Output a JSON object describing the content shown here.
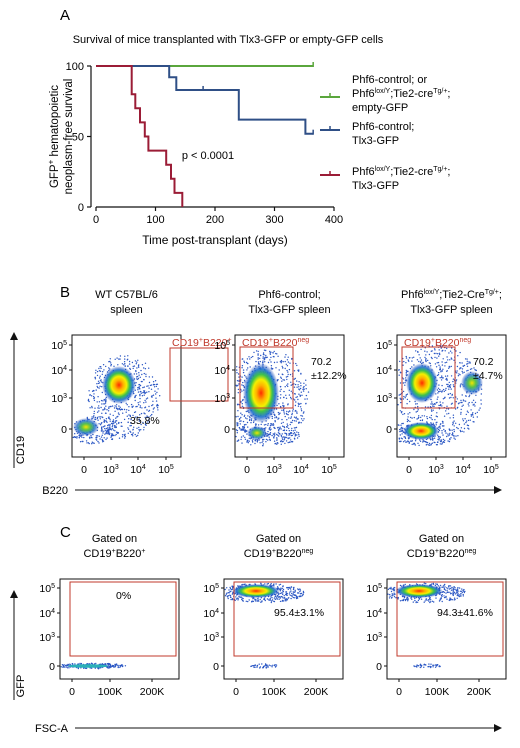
{
  "colors": {
    "green": "#5aa63c",
    "blue": "#2f4f86",
    "red": "#9b1c36",
    "gate": "#c0392b",
    "axis": "#111111"
  },
  "panel_letters": [
    "A",
    "B",
    "C"
  ],
  "chart_data": [
    {
      "type": "line",
      "subtype": "kaplan-meier",
      "title": "Survival of mice transplanted with Tlx3-GFP or empty-GFP cells",
      "xlabel": "Time post-transplant (days)",
      "ylabel_lines": [
        "GFP+ hematopoietic",
        "neoplasm-free survival"
      ],
      "xlim": [
        0,
        400
      ],
      "ylim": [
        0,
        100
      ],
      "xticks": [
        0,
        100,
        200,
        300,
        400
      ],
      "yticks": [
        0,
        50,
        100
      ],
      "annotation": "p < 0.0001",
      "series": [
        {
          "name_lines": [
            "Phf6-control; or",
            "Phf6lox/Y;Tie2-creTg/+;",
            "empty-GFP"
          ],
          "color": "#5aa63c",
          "points": [
            [
              0,
              100
            ],
            [
              365,
              100
            ]
          ],
          "censor": [
            [
              365,
              100
            ]
          ]
        },
        {
          "name_lines": [
            "Phf6-control;",
            "Tlx3-GFP"
          ],
          "color": "#2f4f86",
          "points": [
            [
              0,
              100
            ],
            [
              123,
              100
            ],
            [
              123,
              92
            ],
            [
              135,
              92
            ],
            [
              135,
              83
            ],
            [
              240,
              83
            ],
            [
              240,
              62
            ],
            [
              352,
              62
            ],
            [
              352,
              52
            ],
            [
              365,
              52
            ]
          ],
          "censor": [
            [
              180,
              83
            ],
            [
              365,
              52
            ]
          ]
        },
        {
          "name_lines": [
            "Phf6lox/Y;Tie2-creTg/+;",
            "Tlx3-GFP"
          ],
          "color": "#9b1c36",
          "points": [
            [
              0,
              100
            ],
            [
              60,
              100
            ],
            [
              60,
              80
            ],
            [
              66,
              80
            ],
            [
              66,
              70
            ],
            [
              74,
              70
            ],
            [
              74,
              60
            ],
            [
              82,
              60
            ],
            [
              82,
              50
            ],
            [
              88,
              50
            ],
            [
              88,
              40
            ],
            [
              118,
              40
            ],
            [
              118,
              30
            ],
            [
              126,
              30
            ],
            [
              126,
              20
            ],
            [
              132,
              20
            ],
            [
              132,
              10
            ],
            [
              145,
              10
            ],
            [
              145,
              0
            ]
          ],
          "censor": []
        }
      ]
    },
    {
      "type": "scatter",
      "subtype": "flow-cytometry",
      "xlabel": "B220",
      "ylabel": "CD19",
      "xticks": [
        "0",
        "10^3",
        "10^4",
        "10^5"
      ],
      "yticks": [
        "0",
        "10^3",
        "10^4",
        "10^5"
      ],
      "plots": [
        {
          "title_lines": [
            "WT C57BL/6",
            "spleen"
          ],
          "gate": "CD19+B220+",
          "value_lines": [
            "35.8%"
          ]
        },
        {
          "title_lines": [
            "Phf6-control;",
            "Tlx3-GFP spleen"
          ],
          "gate": "CD19+B220neg",
          "value_lines": [
            "70.2",
            "±12.2%"
          ]
        },
        {
          "title_lines": [
            "Phf6lox/Y;Tie2-CreTg/+;",
            "Tlx3-GFP spleen"
          ],
          "gate": "CD19+B220neg",
          "value_lines": [
            "70.2",
            "±4.7%"
          ]
        }
      ]
    },
    {
      "type": "scatter",
      "subtype": "flow-cytometry",
      "xlabel": "FSC-A",
      "ylabel": "GFP",
      "xticks": [
        "0",
        "100K",
        "200K"
      ],
      "yticks": [
        "0",
        "10^3",
        "10^4",
        "10^5"
      ],
      "plots": [
        {
          "title_lines": [
            "Gated on",
            "CD19+B220+"
          ],
          "value_lines": [
            "0%"
          ]
        },
        {
          "title_lines": [
            "Gated on",
            "CD19+B220neg"
          ],
          "value_lines": [
            "95.4±3.1%"
          ]
        },
        {
          "title_lines": [
            "Gated on",
            "CD19+B220neg"
          ],
          "value_lines": [
            "94.3±41.6%"
          ]
        }
      ]
    }
  ]
}
